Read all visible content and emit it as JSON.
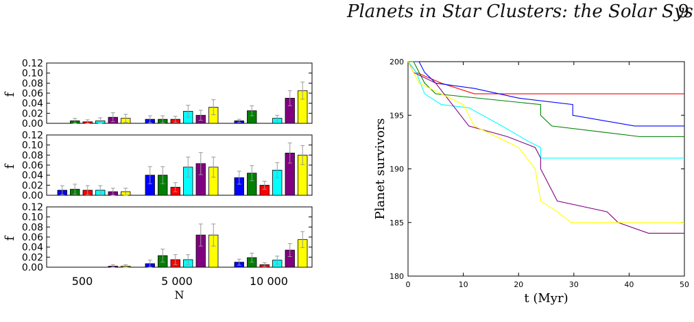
{
  "header": {
    "title": "Planets in Star Clusters: the Solar System",
    "page_number": "9"
  },
  "colors": [
    "#0000ff",
    "#007f00",
    "#ff0000",
    "#00ffff",
    "#800080",
    "#ffff00"
  ],
  "chart_data": [
    {
      "type": "bar",
      "panels": [
        {
          "ylabel": "f",
          "categories": [
            "500",
            "5 000",
            "10 000"
          ],
          "yticks": [
            "0.00",
            "0.02",
            "0.04",
            "0.06",
            "0.08",
            "0.10",
            "0.12"
          ],
          "ylim": [
            0,
            0.12
          ],
          "values": [
            [
              0.0,
              0.005,
              0.003,
              0.005,
              0.012,
              0.01
            ],
            [
              0.008,
              0.008,
              0.008,
              0.024,
              0.016,
              0.032
            ],
            [
              0.005,
              0.025,
              0.0,
              0.01,
              0.05,
              0.065
            ]
          ],
          "errors": [
            [
              0.0,
              0.005,
              0.004,
              0.006,
              0.009,
              0.008
            ],
            [
              0.007,
              0.007,
              0.006,
              0.012,
              0.01,
              0.015
            ],
            [
              0.003,
              0.01,
              0.0,
              0.006,
              0.015,
              0.017
            ]
          ]
        },
        {
          "ylabel": "f",
          "categories": [
            "500",
            "5 000",
            "10 000"
          ],
          "yticks": [
            "0.00",
            "0.02",
            "0.04",
            "0.06",
            "0.08",
            "0.10",
            "0.12"
          ],
          "ylim": [
            0,
            0.12
          ],
          "values": [
            [
              0.01,
              0.012,
              0.01,
              0.01,
              0.007,
              0.007
            ],
            [
              0.04,
              0.04,
              0.016,
              0.056,
              0.063,
              0.056
            ],
            [
              0.035,
              0.044,
              0.02,
              0.05,
              0.084,
              0.08
            ]
          ],
          "errors": [
            [
              0.009,
              0.01,
              0.009,
              0.009,
              0.007,
              0.007
            ],
            [
              0.017,
              0.017,
              0.009,
              0.02,
              0.022,
              0.02
            ],
            [
              0.013,
              0.015,
              0.008,
              0.015,
              0.02,
              0.019
            ]
          ]
        },
        {
          "ylabel": "f",
          "categories": [
            "500",
            "5 000",
            "10 000"
          ],
          "yticks": [
            "0.00",
            "0.02",
            "0.04",
            "0.06",
            "0.08",
            "0.10",
            "0.12"
          ],
          "ylim": [
            0,
            0.12
          ],
          "values": [
            [
              0.0,
              0.0,
              0.0,
              0.0,
              0.002,
              0.002
            ],
            [
              0.007,
              0.023,
              0.015,
              0.015,
              0.064,
              0.064
            ],
            [
              0.01,
              0.019,
              0.005,
              0.014,
              0.034,
              0.055
            ]
          ],
          "errors": [
            [
              0.0,
              0.0,
              0.0,
              0.0,
              0.003,
              0.003
            ],
            [
              0.007,
              0.013,
              0.01,
              0.01,
              0.022,
              0.022
            ],
            [
              0.006,
              0.009,
              0.004,
              0.008,
              0.013,
              0.016
            ]
          ]
        }
      ],
      "xlabel": "N"
    },
    {
      "type": "line",
      "xlabel": "t (Myr)",
      "ylabel": "Planet survivors",
      "xlim": [
        0,
        50
      ],
      "ylim": [
        180,
        200
      ],
      "xticks": [
        "0",
        "10",
        "20",
        "30",
        "40",
        "50"
      ],
      "yticks": [
        "180",
        "185",
        "190",
        "195",
        "200"
      ],
      "series": [
        {
          "color": "#ff0000",
          "points": [
            [
              0,
              200
            ],
            [
              1.5,
              199
            ],
            [
              6,
              198
            ],
            [
              12,
              197
            ],
            [
              50,
              197
            ]
          ]
        },
        {
          "color": "#0000ff",
          "points": [
            [
              0,
              200
            ],
            [
              2,
              200
            ],
            [
              3,
              199
            ],
            [
              5,
              198
            ],
            [
              12,
              197.5
            ],
            [
              20,
              196.6
            ],
            [
              29.8,
              196
            ],
            [
              29.8,
              195
            ],
            [
              41,
              194
            ],
            [
              50,
              194
            ]
          ]
        },
        {
          "color": "#007f00",
          "points": [
            [
              0,
              200
            ],
            [
              1,
              200
            ],
            [
              3,
              198
            ],
            [
              5,
              197
            ],
            [
              24,
              196
            ],
            [
              24,
              195
            ],
            [
              26,
              194
            ],
            [
              42,
              193
            ],
            [
              50,
              193
            ]
          ]
        },
        {
          "color": "#00ffff",
          "points": [
            [
              0,
              200
            ],
            [
              1.5,
              199
            ],
            [
              3,
              197
            ],
            [
              6,
              196
            ],
            [
              11,
              195.7
            ],
            [
              17,
              194
            ],
            [
              22,
              192.5
            ],
            [
              24,
              192
            ],
            [
              24,
              191
            ],
            [
              50,
              191
            ]
          ]
        },
        {
          "color": "#800080",
          "points": [
            [
              0,
              200
            ],
            [
              1,
              199
            ],
            [
              5,
              198
            ],
            [
              8,
              196
            ],
            [
              11,
              194
            ],
            [
              18,
              193
            ],
            [
              23,
              192
            ],
            [
              24,
              191
            ],
            [
              24,
              190
            ],
            [
              26,
              188
            ],
            [
              27,
              187
            ],
            [
              36,
              186
            ],
            [
              38,
              185
            ],
            [
              43.5,
              184
            ],
            [
              50,
              184
            ]
          ]
        },
        {
          "color": "#ffff00",
          "points": [
            [
              0,
              200
            ],
            [
              2,
              198
            ],
            [
              10,
              196
            ],
            [
              12,
              194
            ],
            [
              20,
              192
            ],
            [
              23,
              190
            ],
            [
              24,
              187
            ],
            [
              27,
              186
            ],
            [
              29.5,
              185
            ],
            [
              50,
              185
            ]
          ]
        }
      ]
    }
  ]
}
